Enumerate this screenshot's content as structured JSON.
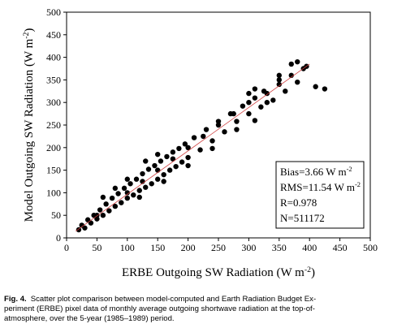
{
  "chart_data": {
    "type": "scatter",
    "xlabel": {
      "text": "ERBE Outgoing SW Radiation (W m",
      "sup": "-2",
      "tail": ")"
    },
    "ylabel": {
      "text": "Model Outgoing SW Radiation (W m",
      "sup": "-2",
      "tail": ")"
    },
    "xlim": [
      0,
      500
    ],
    "ylim": [
      0,
      500
    ],
    "xticks": [
      0,
      50,
      100,
      150,
      200,
      250,
      300,
      350,
      400,
      450,
      500
    ],
    "yticks": [
      0,
      50,
      100,
      150,
      200,
      250,
      300,
      350,
      400,
      450,
      500
    ],
    "series": [
      {
        "color": "#000000",
        "x": [
          20,
          25,
          30,
          35,
          40,
          45,
          50,
          55,
          60,
          65,
          70,
          75,
          80,
          85,
          90,
          95,
          100,
          105,
          110,
          115,
          120,
          125,
          130,
          135,
          140,
          145,
          150,
          155,
          160,
          165,
          170,
          175,
          180,
          185,
          190,
          195,
          200,
          210,
          220,
          230,
          240,
          250,
          260,
          270,
          280,
          290,
          300,
          310,
          320,
          330,
          340,
          350,
          360,
          370,
          380,
          390,
          300,
          310,
          330,
          350,
          370,
          380,
          395,
          410,
          425,
          60,
          80,
          100,
          130,
          150,
          120,
          160,
          200,
          240,
          280,
          310,
          100,
          150,
          200,
          250,
          300,
          350,
          50,
          125,
          175,
          225,
          275,
          325
        ],
        "y": [
          18,
          28,
          22,
          40,
          33,
          50,
          42,
          62,
          50,
          75,
          60,
          88,
          70,
          98,
          78,
          110,
          88,
          120,
          95,
          130,
          105,
          142,
          112,
          152,
          120,
          160,
          130,
          170,
          140,
          180,
          150,
          190,
          158,
          198,
          168,
          208,
          178,
          222,
          195,
          240,
          215,
          258,
          235,
          275,
          258,
          292,
          275,
          310,
          290,
          320,
          305,
          340,
          325,
          360,
          345,
          375,
          320,
          330,
          300,
          360,
          385,
          390,
          380,
          335,
          330,
          90,
          110,
          130,
          170,
          185,
          90,
          125,
          160,
          198,
          240,
          260,
          100,
          150,
          200,
          250,
          300,
          350,
          50,
          125,
          175,
          225,
          275,
          325
        ]
      }
    ],
    "fit_line": {
      "color": "#d04040",
      "x": [
        15,
        400
      ],
      "y": [
        15,
        385
      ]
    },
    "annotations": [
      {
        "text": "Bias=3.66 W m",
        "sup": "-2"
      },
      {
        "text": "RMS=11.54 W m",
        "sup": "-2"
      },
      {
        "text": "R=0.978"
      },
      {
        "text": "N=511172"
      }
    ]
  },
  "caption": {
    "label": "Fig. 4.",
    "lines": [
      "Scatter plot comparison between model-computed and Earth Radiation Budget Ex-",
      "periment (ERBE) pixel data of monthly average outgoing shortwave radiation at the top-of-",
      "atmosphere, over the 5-year (1985–1989) period."
    ]
  }
}
